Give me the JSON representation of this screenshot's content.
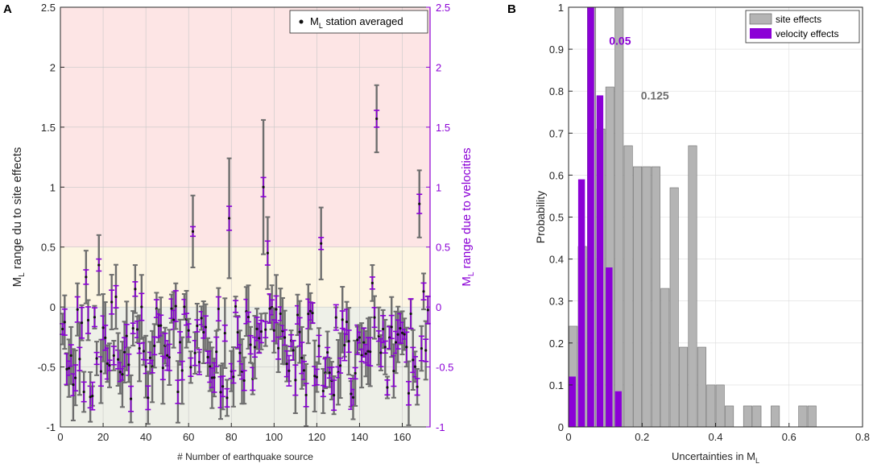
{
  "panels": {
    "a": {
      "label": "A"
    },
    "b": {
      "label": "B"
    }
  },
  "chart_data": [
    {
      "type": "scatter",
      "panel": "A",
      "xlabel": "# Number of earthquake source",
      "ylabel_left": {
        "main": "M",
        "sub": "L",
        "rest": " range du to site effects"
      },
      "ylabel_right": {
        "main": "M",
        "sub": "L",
        "rest": " range due to velocities"
      },
      "xlim": [
        0,
        173
      ],
      "ylim": [
        -1,
        2.5
      ],
      "xticks": [
        "0",
        "20",
        "40",
        "60",
        "80",
        "100",
        "120",
        "140",
        "160"
      ],
      "yticks": [
        "-1",
        "-0.5",
        "0",
        "0.5",
        "1",
        "1.5",
        "2",
        "2.5"
      ],
      "yticks_right": [
        "-1",
        "-0.5",
        "0",
        "0.5",
        "1",
        "1.5",
        "2",
        "2.5"
      ],
      "grid": true,
      "background_bands": [
        {
          "from": -1,
          "to": 0,
          "color": "#eef0e8"
        },
        {
          "from": 0,
          "to": 0.5,
          "color": "#fdf6e3"
        },
        {
          "from": 0.5,
          "to": 2.5,
          "color": "#fde5e5"
        }
      ],
      "legend": {
        "marker_label": "M",
        "marker_sub": "L",
        "marker_rest": " station averaged",
        "position": "top-right"
      },
      "colors": {
        "site": "#6e6e6e",
        "velocity": "#8b00d6",
        "point": "#111111",
        "right_axis": "#8b00d6"
      },
      "highlighted_points": [
        {
          "x": 62,
          "y": 0.63,
          "site_err": 0.3,
          "vel_err": 0.04
        },
        {
          "x": 79,
          "y": 0.74,
          "site_err": 0.5,
          "vel_err": 0.1
        },
        {
          "x": 95,
          "y": 1.0,
          "site_err": 0.56,
          "vel_err": 0.08
        },
        {
          "x": 97,
          "y": 0.45,
          "site_err": 0.3,
          "vel_err": 0.1
        },
        {
          "x": 122,
          "y": 0.53,
          "site_err": 0.3,
          "vel_err": 0.05
        },
        {
          "x": 148,
          "y": 1.57,
          "site_err": 0.28,
          "vel_err": 0.07
        },
        {
          "x": 168,
          "y": 0.86,
          "site_err": 0.28,
          "vel_err": 0.08
        },
        {
          "x": 12,
          "y": 0.25,
          "site_err": 0.22,
          "vel_err": 0.06
        },
        {
          "x": 18,
          "y": 0.35,
          "site_err": 0.25,
          "vel_err": 0.05
        },
        {
          "x": 35,
          "y": 0.15,
          "site_err": 0.2,
          "vel_err": 0.06
        },
        {
          "x": 146,
          "y": 0.2,
          "site_err": 0.15,
          "vel_err": 0.05
        },
        {
          "x": 170,
          "y": 0.13,
          "site_err": 0.15,
          "vel_err": 0.07
        }
      ],
      "n_sources": 172
    },
    {
      "type": "bar",
      "panel": "B",
      "xlabel": {
        "main": "Uncertainties in M",
        "sub": "L"
      },
      "ylabel": "Probability",
      "xlim": [
        0,
        0.8
      ],
      "ylim": [
        0,
        1
      ],
      "xticks": [
        "0",
        "0.2",
        "0.4",
        "0.6",
        "0.8"
      ],
      "yticks": [
        "0",
        "0.1",
        "0.2",
        "0.3",
        "0.4",
        "0.5",
        "0.6",
        "0.7",
        "0.8",
        "0.9",
        "1"
      ],
      "grid": true,
      "legend_position": "top-right",
      "bin_width": 0.025,
      "series": [
        {
          "name": "site effects",
          "color": "#b4b4b4",
          "bins": [
            0,
            0.025,
            0.05,
            0.075,
            0.1,
            0.125,
            0.15,
            0.175,
            0.2,
            0.225,
            0.25,
            0.275,
            0.3,
            0.325,
            0.35,
            0.375,
            0.4,
            0.425,
            0.45,
            0.475,
            0.5,
            0.525,
            0.55,
            0.575,
            0.6,
            0.625,
            0.65
          ],
          "values": [
            0.24,
            0.43,
            1.0,
            0.71,
            0.81,
            1.0,
            0.67,
            0.62,
            0.62,
            0.62,
            0.33,
            0.57,
            0.19,
            0.67,
            0.19,
            0.1,
            0.1,
            0.05,
            0,
            0.05,
            0.05,
            0,
            0.05,
            0,
            0,
            0.05,
            0.05
          ]
        },
        {
          "name": "velocity effects",
          "color": "#8b00d6",
          "bins": [
            0,
            0.025,
            0.05,
            0.075,
            0.1,
            0.125
          ],
          "values": [
            0.12,
            0.59,
            1.0,
            0.79,
            0.38,
            0.085
          ]
        }
      ],
      "annotations": [
        {
          "text": "0.05",
          "x": 0.14,
          "y": 0.92,
          "color": "#8b00d6"
        },
        {
          "text": "0.125",
          "x": 0.235,
          "y": 0.79,
          "color": "#6e6e6e"
        }
      ]
    }
  ]
}
